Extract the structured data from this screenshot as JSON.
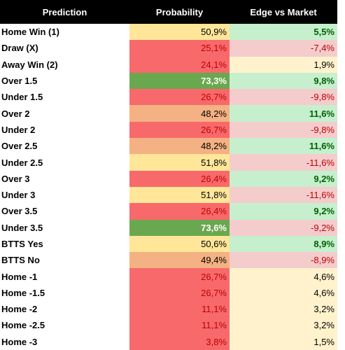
{
  "table": {
    "header": [
      "Prediction",
      "Probability",
      "Edge vs Market"
    ],
    "rows": [
      [
        "Home Win (1)",
        "50,9%",
        "5,5%"
      ],
      [
        "Draw (X)",
        "25,1%",
        "-7,4%"
      ],
      [
        "Away Win (2)",
        "24,1%",
        "1,9%"
      ],
      [
        "Over 1.5",
        "73,3%",
        "9,8%"
      ],
      [
        "Under 1.5",
        "26,7%",
        "-9,8%"
      ],
      [
        "Over 2",
        "48,2%",
        "11,6%"
      ],
      [
        "Under 2",
        "26,7%",
        "-9,8%"
      ],
      [
        "Over 2.5",
        "48,2%",
        "11,6%"
      ],
      [
        "Under 2.5",
        "51,8%",
        "-11,6%"
      ],
      [
        "Over 3",
        "26,4%",
        "9,2%"
      ],
      [
        "Under 3",
        "51,8%",
        "-11,6%"
      ],
      [
        "Over 3.5",
        "26,4%",
        "9,2%"
      ],
      [
        "Under 3.5",
        "73,6%",
        "-9,2%"
      ],
      [
        "BTTS Yes",
        "50,6%",
        "8,9%"
      ],
      [
        "BTTS No",
        "49,4%",
        "-8,9%"
      ],
      [
        "Home -1",
        "26,7%",
        "4,6%"
      ],
      [
        "Home -1.5",
        "26,7%",
        "4,6%"
      ],
      [
        "Home -2",
        "11,1%",
        "3,2%"
      ],
      [
        "Home -2.5",
        "11,1%",
        "3,2%"
      ],
      [
        "Home -3",
        "3,8%",
        "1,5%"
      ]
    ],
    "colors": [
      [
        "#ffe699",
        "#000000",
        "#c6efce",
        "#006100"
      ],
      [
        "#f8696b",
        "#c00000",
        "#f4cccc",
        "#c00000"
      ],
      [
        "#f8696b",
        "#c00000",
        "#fff2cc",
        "#000000"
      ],
      [
        "#6aa84f",
        "#ffffff",
        "#c6efce",
        "#006100"
      ],
      [
        "#f8696b",
        "#c00000",
        "#f4cccc",
        "#c00000"
      ],
      [
        "#f4b183",
        "#000000",
        "#c6efce",
        "#006100"
      ],
      [
        "#f8696b",
        "#c00000",
        "#f4cccc",
        "#c00000"
      ],
      [
        "#f4b183",
        "#000000",
        "#c6efce",
        "#006100"
      ],
      [
        "#ffe699",
        "#000000",
        "#f4cccc",
        "#c00000"
      ],
      [
        "#f8696b",
        "#c00000",
        "#c6efce",
        "#006100"
      ],
      [
        "#ffe699",
        "#000000",
        "#f4cccc",
        "#c00000"
      ],
      [
        "#f8696b",
        "#c00000",
        "#c6efce",
        "#006100"
      ],
      [
        "#6aa84f",
        "#ffffff",
        "#f4cccc",
        "#c00000"
      ],
      [
        "#ffe699",
        "#000000",
        "#c6efce",
        "#006100"
      ],
      [
        "#f4b183",
        "#000000",
        "#f4cccc",
        "#c00000"
      ],
      [
        "#f8696b",
        "#c00000",
        "#fff2cc",
        "#000000"
      ],
      [
        "#f8696b",
        "#c00000",
        "#fff2cc",
        "#000000"
      ],
      [
        "#f8696b",
        "#c00000",
        "#fff2cc",
        "#000000"
      ],
      [
        "#f8696b",
        "#c00000",
        "#fff2cc",
        "#000000"
      ],
      [
        "#f8696b",
        "#c00000",
        "#fff2cc",
        "#000000"
      ]
    ]
  }
}
